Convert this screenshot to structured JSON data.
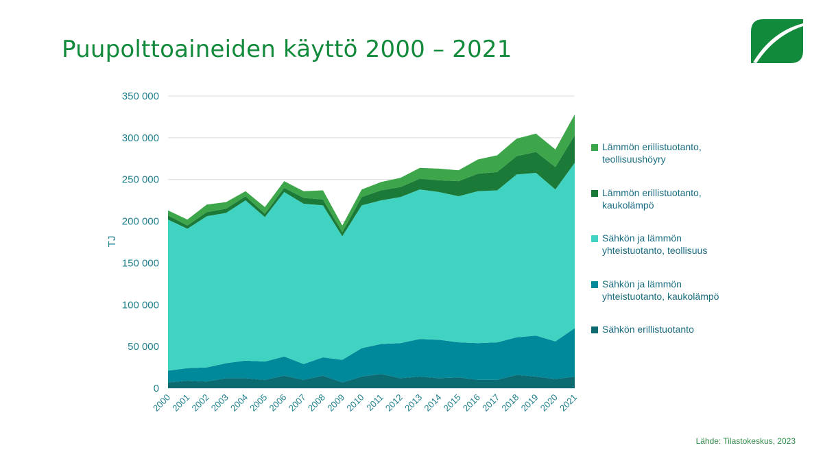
{
  "title": "Puupolttoaineiden käyttö 2000 – 2021",
  "source": "Lähde: Tilastokeskus, 2023",
  "logo_icon": "leaf-icon",
  "colors": {
    "logo": "#128a3c",
    "grid": "#dcdcdc",
    "axis_text": "#1f7f8c"
  },
  "chart_data": {
    "type": "area",
    "stacked": true,
    "ylabel": "TJ",
    "xlabel": "",
    "ylim": [
      0,
      350000
    ],
    "yticks": [
      0,
      50000,
      100000,
      150000,
      200000,
      250000,
      300000,
      350000
    ],
    "ytick_labels": [
      "0",
      "50 000",
      "100 000",
      "150 000",
      "200 000",
      "250 000",
      "300 000",
      "350 000"
    ],
    "grid": true,
    "legend_position": "right",
    "categories": [
      "2000",
      "2001",
      "2002",
      "2003",
      "2004",
      "2005",
      "2006",
      "2007",
      "2008",
      "2009",
      "2010",
      "2011",
      "2012",
      "2013",
      "2014",
      "2015",
      "2016",
      "2017",
      "2018",
      "2019",
      "2020",
      "2021"
    ],
    "series": [
      {
        "name": "Sähkön erillistuotanto",
        "color": "#0c6b70",
        "values": [
          7000,
          9000,
          8000,
          12000,
          12000,
          10000,
          15000,
          10000,
          15000,
          7000,
          14000,
          17000,
          12000,
          14000,
          12000,
          13000,
          10000,
          10000,
          16000,
          14000,
          11000,
          14000
        ]
      },
      {
        "name": "Sähkön ja lämmön yhteistuotanto, kaukolämpö",
        "color": "#00899a",
        "values": [
          14000,
          15000,
          17000,
          18000,
          21000,
          22000,
          23000,
          19000,
          22000,
          27000,
          34000,
          36000,
          42000,
          45000,
          46000,
          42000,
          44000,
          45000,
          45000,
          49000,
          45000,
          58000
        ]
      },
      {
        "name": "Sähkön ja lämmön yhteistuotanto, teollisuus",
        "color": "#41d3c1",
        "values": [
          181000,
          167000,
          181000,
          180000,
          192000,
          173000,
          197000,
          192000,
          182000,
          148000,
          171000,
          172000,
          175000,
          179000,
          177000,
          175000,
          182000,
          182000,
          195000,
          195000,
          182000,
          198000
        ]
      },
      {
        "name": "Lämmön erillistuotanto, kaukolämpö",
        "color": "#1b7a38",
        "values": [
          5000,
          4000,
          5000,
          5000,
          5000,
          4000,
          5000,
          7000,
          7000,
          5000,
          10000,
          12000,
          12000,
          13000,
          14000,
          18000,
          21000,
          22000,
          22000,
          25000,
          27000,
          33000
        ]
      },
      {
        "name": "Lämmön erillistuotanto, teollisuushöyry",
        "color": "#3ea64a",
        "values": [
          6000,
          7000,
          9000,
          8000,
          6000,
          8000,
          8000,
          8000,
          11000,
          8000,
          9000,
          10000,
          11000,
          13000,
          14000,
          13000,
          17000,
          20000,
          21000,
          22000,
          21000,
          25000
        ]
      }
    ]
  }
}
